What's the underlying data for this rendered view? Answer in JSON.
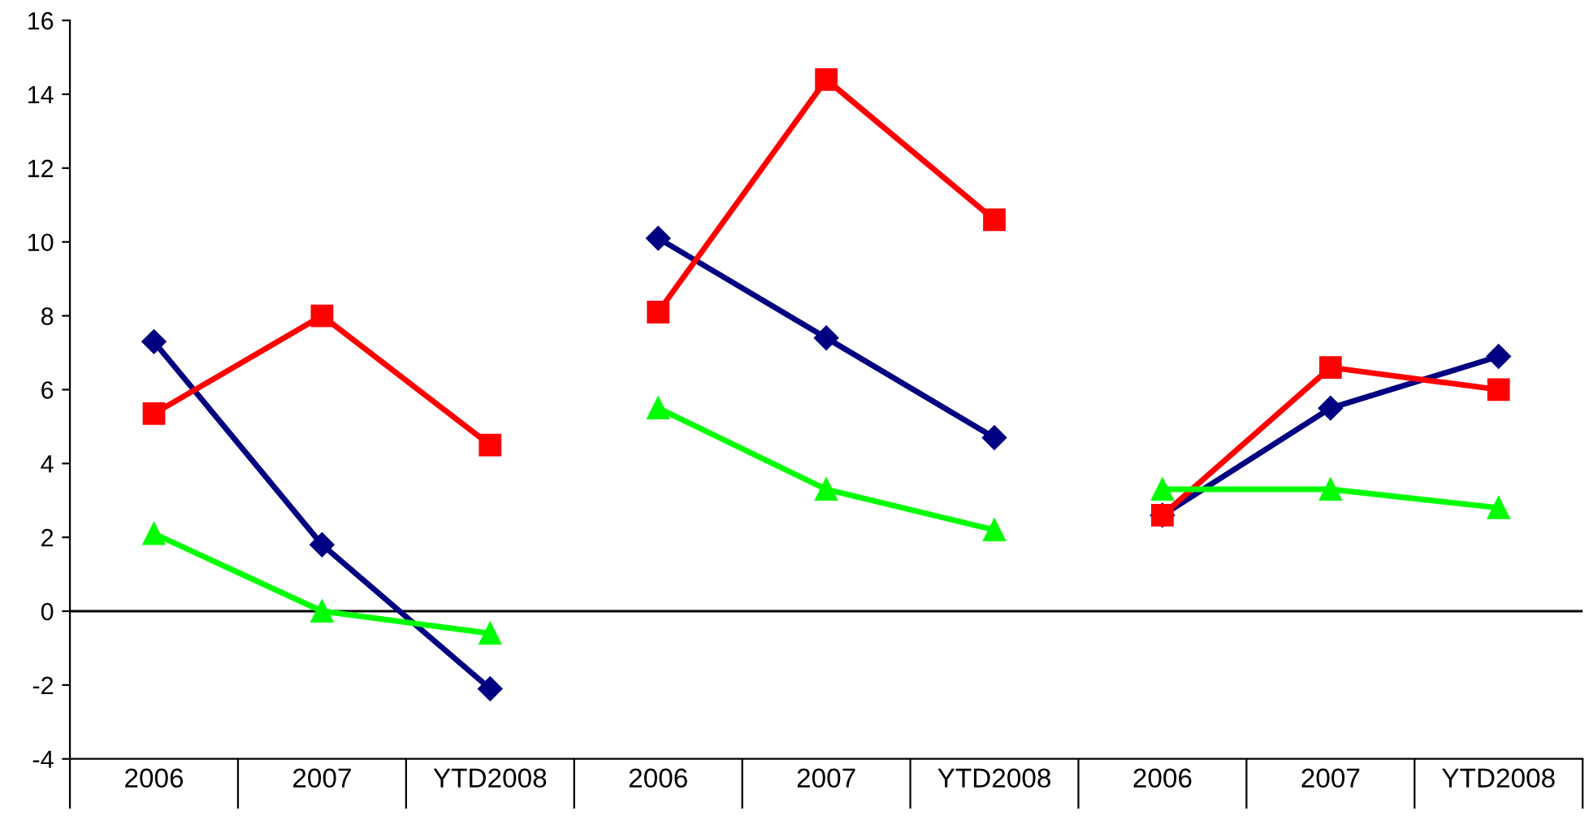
{
  "chart_data": {
    "type": "line",
    "categories": [
      "2006",
      "2007",
      "YTD2008",
      "2006",
      "2007",
      "YTD2008",
      "2006",
      "2007",
      "YTD2008"
    ],
    "ylim": [
      -4,
      16
    ],
    "yticks": [
      -4,
      -2,
      0,
      2,
      4,
      6,
      8,
      10,
      12,
      14,
      16
    ],
    "grid": false,
    "legend": false,
    "line_style": "solid",
    "ref_lines": [
      {
        "axis": "y",
        "value": 0,
        "color": "#000000"
      }
    ],
    "series": [
      {
        "color": "#000080",
        "marker": "diamond",
        "values": [
          7.3,
          1.8,
          -2.1,
          null,
          null,
          null,
          null,
          null,
          null
        ]
      },
      {
        "color": "#ff0000",
        "marker": "square",
        "values": [
          5.35,
          8.0,
          4.5,
          null,
          null,
          null,
          null,
          null,
          null
        ]
      },
      {
        "color": "#00ff00",
        "marker": "triangle",
        "values": [
          2.1,
          0.0,
          -0.6,
          null,
          null,
          null,
          null,
          null,
          null
        ]
      },
      {
        "color": "#000080",
        "marker": "diamond",
        "values": [
          null,
          null,
          null,
          10.1,
          7.4,
          4.7,
          null,
          null,
          null
        ]
      },
      {
        "color": "#ff0000",
        "marker": "square",
        "values": [
          null,
          null,
          null,
          8.1,
          14.4,
          10.6,
          null,
          null,
          null
        ]
      },
      {
        "color": "#00ff00",
        "marker": "triangle",
        "values": [
          null,
          null,
          null,
          5.5,
          3.3,
          2.2,
          null,
          null,
          null
        ]
      },
      {
        "color": "#000080",
        "marker": "diamond",
        "values": [
          null,
          null,
          null,
          null,
          null,
          null,
          2.6,
          5.5,
          6.9
        ]
      },
      {
        "color": "#ff0000",
        "marker": "square",
        "values": [
          null,
          null,
          null,
          null,
          null,
          null,
          2.6,
          6.6,
          6.0
        ]
      },
      {
        "color": "#00ff00",
        "marker": "triangle",
        "values": [
          null,
          null,
          null,
          null,
          null,
          null,
          3.3,
          3.3,
          2.8
        ]
      }
    ]
  }
}
